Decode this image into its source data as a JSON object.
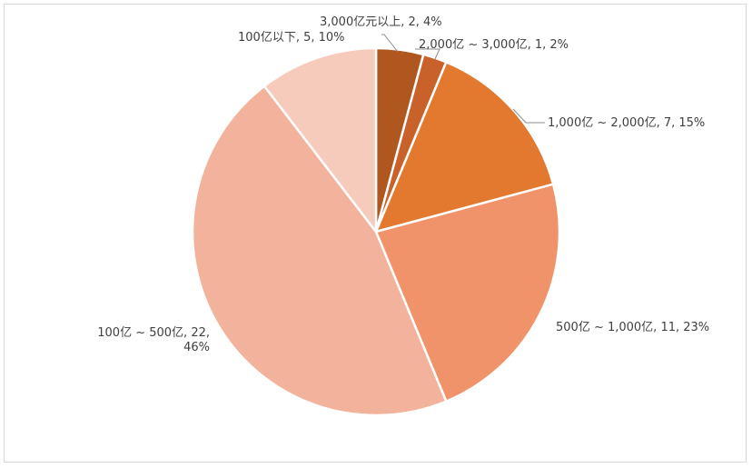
{
  "chart_data": {
    "type": "pie",
    "start_angle_deg": 0,
    "direction": "clockwise",
    "slices": [
      {
        "name": "3,000亿元以上",
        "value": 2,
        "percent": "4%",
        "color": "#B0561F",
        "label_lines": [
          "3,000亿元以上, 2, 4%"
        ]
      },
      {
        "name": "2,000亿 ~ 3,000亿",
        "value": 1,
        "percent": "2%",
        "color": "#C8612A",
        "label_lines": [
          "2,000亿 ~ 3,000亿, 1, 2%"
        ]
      },
      {
        "name": "1,000亿 ~ 2,000亿",
        "value": 7,
        "percent": "15%",
        "color": "#E2792F",
        "label_lines": [
          "1,000亿 ~ 2,000亿, 7, 15%"
        ]
      },
      {
        "name": "500亿 ~ 1,000亿",
        "value": 11,
        "percent": "23%",
        "color": "#F0936A",
        "label_lines": [
          "500亿 ~ 1,000亿, 11, 23%"
        ]
      },
      {
        "name": "100亿 ~ 500亿",
        "value": 22,
        "percent": "46%",
        "color": "#F2B29B",
        "label_lines": [
          "100亿 ~ 500亿, 22,",
          "46%"
        ]
      },
      {
        "name": "100亿以下",
        "value": 5,
        "percent": "10%",
        "color": "#F6CBBC",
        "label_lines": [
          "100亿以下, 5, 10%"
        ]
      }
    ]
  }
}
